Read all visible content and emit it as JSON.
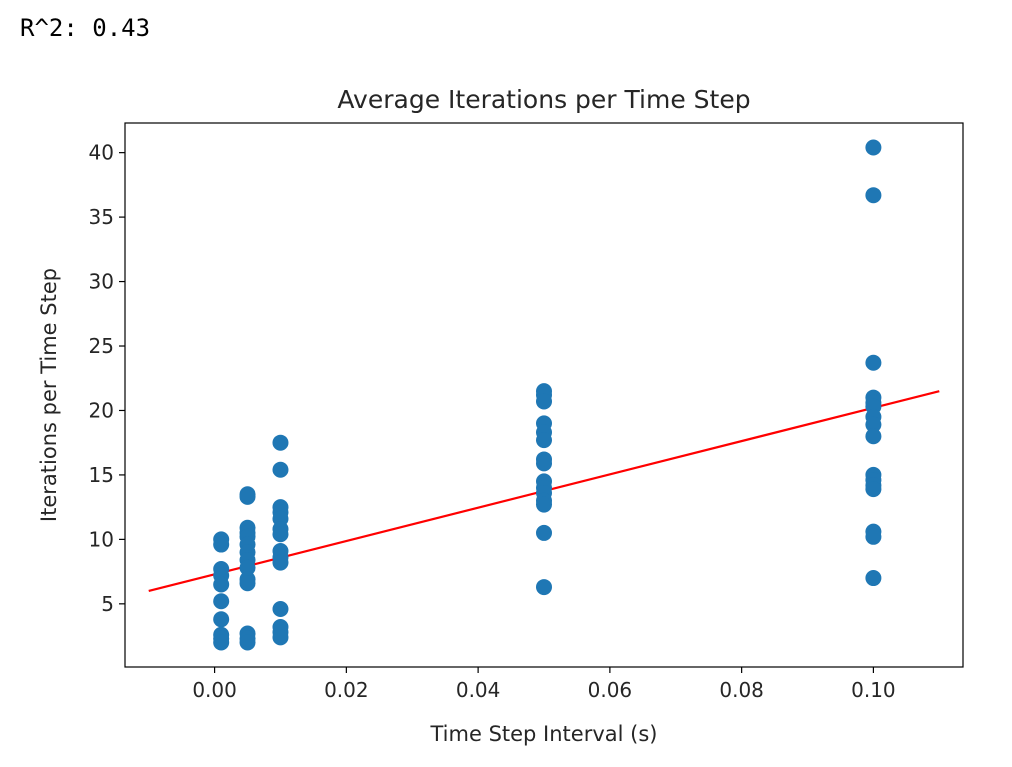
{
  "header": {
    "r_squared_text": "R^2: 0.43"
  },
  "chart_data": {
    "type": "scatter",
    "title": "Average Iterations per Time Step",
    "xlabel": "Time Step Interval (s)",
    "ylabel": "Iterations per Time Step",
    "xlim": [
      -0.0136,
      0.1136
    ],
    "ylim": [
      0.1,
      42.3
    ],
    "xticks": [
      0.0,
      0.02,
      0.04,
      0.06,
      0.08,
      0.1
    ],
    "xtick_labels": [
      "0.00",
      "0.02",
      "0.04",
      "0.06",
      "0.08",
      "0.10"
    ],
    "yticks": [
      5,
      10,
      15,
      20,
      25,
      30,
      35,
      40
    ],
    "ytick_labels": [
      "5",
      "10",
      "15",
      "20",
      "25",
      "30",
      "35",
      "40"
    ],
    "grid": false,
    "legend": "none",
    "series": [
      {
        "kind": "scatter",
        "color": "#1f77b4",
        "points": [
          [
            0.001,
            10.0
          ],
          [
            0.001,
            9.6
          ],
          [
            0.001,
            7.7
          ],
          [
            0.001,
            7.2
          ],
          [
            0.001,
            6.5
          ],
          [
            0.001,
            5.2
          ],
          [
            0.001,
            3.8
          ],
          [
            0.001,
            2.6
          ],
          [
            0.001,
            2.3
          ],
          [
            0.001,
            2.0
          ],
          [
            0.005,
            13.5
          ],
          [
            0.005,
            13.3
          ],
          [
            0.005,
            10.9
          ],
          [
            0.005,
            10.5
          ],
          [
            0.005,
            10.2
          ],
          [
            0.005,
            9.6
          ],
          [
            0.005,
            9.0
          ],
          [
            0.005,
            8.4
          ],
          [
            0.005,
            7.8
          ],
          [
            0.005,
            6.9
          ],
          [
            0.005,
            6.6
          ],
          [
            0.005,
            2.7
          ],
          [
            0.005,
            2.3
          ],
          [
            0.005,
            2.0
          ],
          [
            0.01,
            17.5
          ],
          [
            0.01,
            15.4
          ],
          [
            0.01,
            12.5
          ],
          [
            0.01,
            12.1
          ],
          [
            0.01,
            11.6
          ],
          [
            0.01,
            10.8
          ],
          [
            0.01,
            10.4
          ],
          [
            0.01,
            9.1
          ],
          [
            0.01,
            8.6
          ],
          [
            0.01,
            8.2
          ],
          [
            0.01,
            4.6
          ],
          [
            0.01,
            3.2
          ],
          [
            0.01,
            2.8
          ],
          [
            0.01,
            2.4
          ],
          [
            0.05,
            21.5
          ],
          [
            0.05,
            21.2
          ],
          [
            0.05,
            20.7
          ],
          [
            0.05,
            19.0
          ],
          [
            0.05,
            18.3
          ],
          [
            0.05,
            17.7
          ],
          [
            0.05,
            16.2
          ],
          [
            0.05,
            15.9
          ],
          [
            0.05,
            14.5
          ],
          [
            0.05,
            14.0
          ],
          [
            0.05,
            13.6
          ],
          [
            0.05,
            13.0
          ],
          [
            0.05,
            12.7
          ],
          [
            0.05,
            10.5
          ],
          [
            0.05,
            6.3
          ],
          [
            0.1,
            40.4
          ],
          [
            0.1,
            36.7
          ],
          [
            0.1,
            23.7
          ],
          [
            0.1,
            21.0
          ],
          [
            0.1,
            20.6
          ],
          [
            0.1,
            20.3
          ],
          [
            0.1,
            19.5
          ],
          [
            0.1,
            18.9
          ],
          [
            0.1,
            18.0
          ],
          [
            0.1,
            15.0
          ],
          [
            0.1,
            14.6
          ],
          [
            0.1,
            14.2
          ],
          [
            0.1,
            13.9
          ],
          [
            0.1,
            10.6
          ],
          [
            0.1,
            10.2
          ],
          [
            0.1,
            7.0
          ]
        ]
      },
      {
        "kind": "line",
        "color": "#ff0000",
        "x": [
          -0.01,
          0.11
        ],
        "y": [
          6.0,
          21.5
        ]
      }
    ]
  }
}
